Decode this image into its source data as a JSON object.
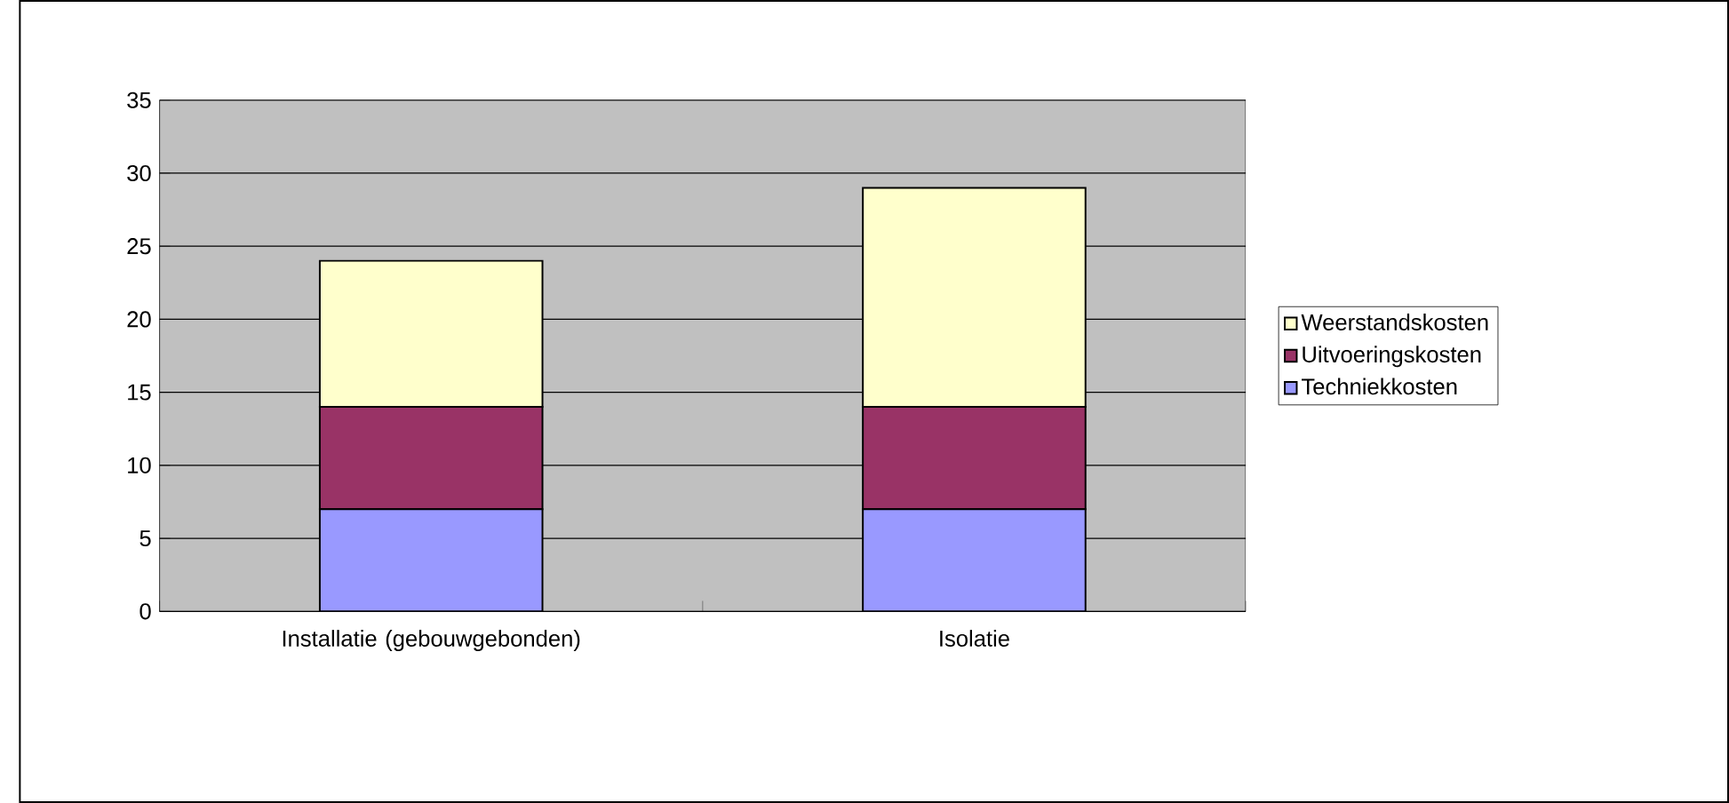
{
  "chart_data": {
    "type": "bar",
    "stacked": true,
    "categories": [
      "Installatie (gebouwgebonden)",
      "Isolatie"
    ],
    "series": [
      {
        "name": "Techniekkosten",
        "color": "#9999ff",
        "values": [
          7,
          7
        ]
      },
      {
        "name": "Uitvoeringskosten",
        "color": "#993366",
        "values": [
          7,
          7
        ]
      },
      {
        "name": "Weerstandskosten",
        "color": "#ffffcc",
        "values": [
          10,
          15
        ]
      }
    ],
    "ylim": [
      0,
      35
    ],
    "yticks": [
      0,
      5,
      10,
      15,
      20,
      25,
      30,
      35
    ],
    "grid": "y",
    "legend": "right"
  }
}
